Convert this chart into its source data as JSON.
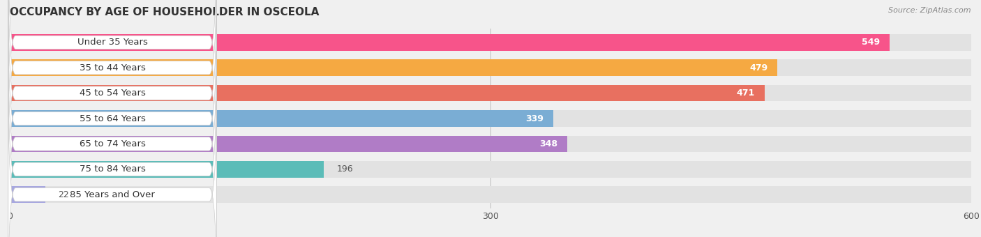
{
  "title": "OCCUPANCY BY AGE OF HOUSEHOLDER IN OSCEOLA",
  "source": "Source: ZipAtlas.com",
  "categories": [
    "Under 35 Years",
    "35 to 44 Years",
    "45 to 54 Years",
    "55 to 64 Years",
    "65 to 74 Years",
    "75 to 84 Years",
    "85 Years and Over"
  ],
  "values": [
    549,
    479,
    471,
    339,
    348,
    196,
    22
  ],
  "bar_colors": [
    "#F7548A",
    "#F5A942",
    "#E87060",
    "#7AADD4",
    "#B07CC6",
    "#5BBCB8",
    "#A8A8E0"
  ],
  "xlim": [
    0,
    600
  ],
  "xticks": [
    0,
    300,
    600
  ],
  "background_color": "#f0f0f0",
  "bar_bg_color": "#e2e2e2",
  "title_fontsize": 11,
  "label_fontsize": 9.5,
  "value_fontsize": 9.0
}
